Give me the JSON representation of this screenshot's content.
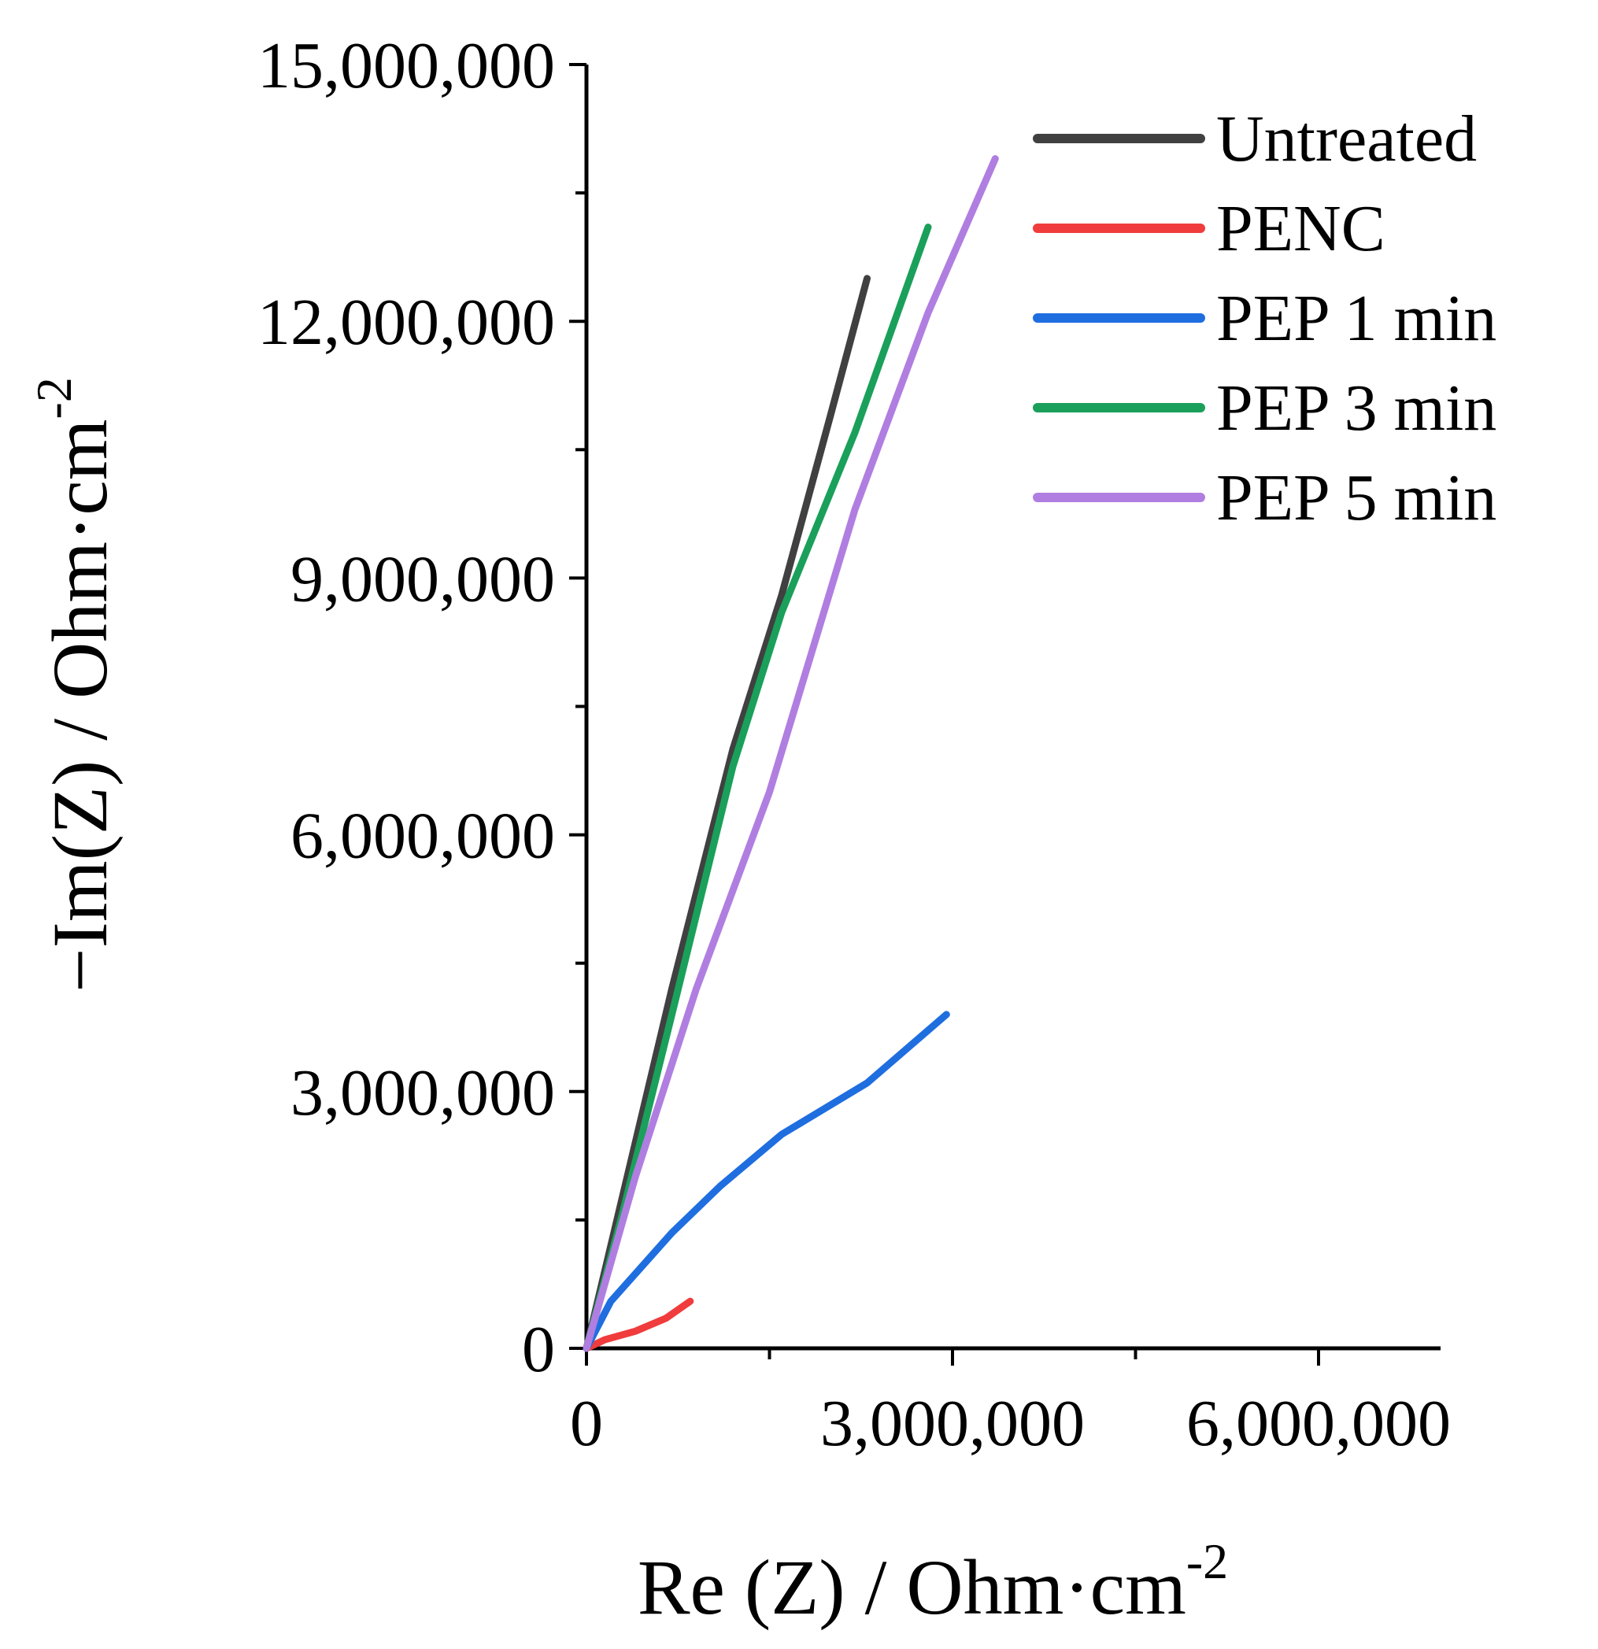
{
  "chart_data": {
    "type": "line",
    "title": "",
    "xlabel": "Re (Z) / Ohm·cm",
    "xlabel_sup": "-2",
    "ylabel": "−Im(Z) / Ohm·cm",
    "ylabel_sup": "-2",
    "xlim": [
      0,
      7000000
    ],
    "ylim": [
      0,
      15000000
    ],
    "x_ticks": [
      {
        "value": 0,
        "label": "0"
      },
      {
        "value": 3000000,
        "label": "3,000,000"
      },
      {
        "value": 6000000,
        "label": "6,000,000"
      }
    ],
    "x_minor_ticks": [
      1500000,
      4500000
    ],
    "y_ticks": [
      {
        "value": 0,
        "label": "0"
      },
      {
        "value": 3000000,
        "label": "3,000,000"
      },
      {
        "value": 6000000,
        "label": "6,000,000"
      },
      {
        "value": 9000000,
        "label": "9,000,000"
      },
      {
        "value": 12000000,
        "label": "12,000,000"
      },
      {
        "value": 15000000,
        "label": "15,000,000"
      }
    ],
    "y_minor_ticks": [
      1500000,
      4500000,
      7500000,
      10500000,
      13500000
    ],
    "grid": false,
    "legend_position": "top-right",
    "series": [
      {
        "name": "Untreated",
        "color": "#404040",
        "x": [
          0,
          300000,
          700000,
          1200000,
          1600000,
          2000000,
          2300000
        ],
        "y": [
          0,
          1800000,
          4200000,
          7000000,
          8800000,
          10900000,
          12500000
        ]
      },
      {
        "name": "PENC",
        "color": "#f03c3c",
        "x": [
          0,
          150000,
          400000,
          650000,
          850000
        ],
        "y": [
          0,
          100000,
          200000,
          350000,
          550000
        ]
      },
      {
        "name": "PEP 1 min",
        "color": "#1f6ee0",
        "x": [
          0,
          200000,
          700000,
          1100000,
          1600000,
          2300000,
          2950000
        ],
        "y": [
          0,
          550000,
          1350000,
          1900000,
          2500000,
          3100000,
          3900000
        ]
      },
      {
        "name": "PEP 3 min",
        "color": "#1aa05a",
        "x": [
          0,
          300000,
          700000,
          1200000,
          1600000,
          2200000,
          2800000
        ],
        "y": [
          0,
          1600000,
          3900000,
          6800000,
          8600000,
          10700000,
          13100000
        ]
      },
      {
        "name": "PEP 5 min",
        "color": "#b07ee0",
        "x": [
          0,
          400000,
          900000,
          1500000,
          2200000,
          2800000,
          3350000
        ],
        "y": [
          0,
          2000000,
          4200000,
          6500000,
          9800000,
          12100000,
          13900000
        ]
      }
    ]
  }
}
